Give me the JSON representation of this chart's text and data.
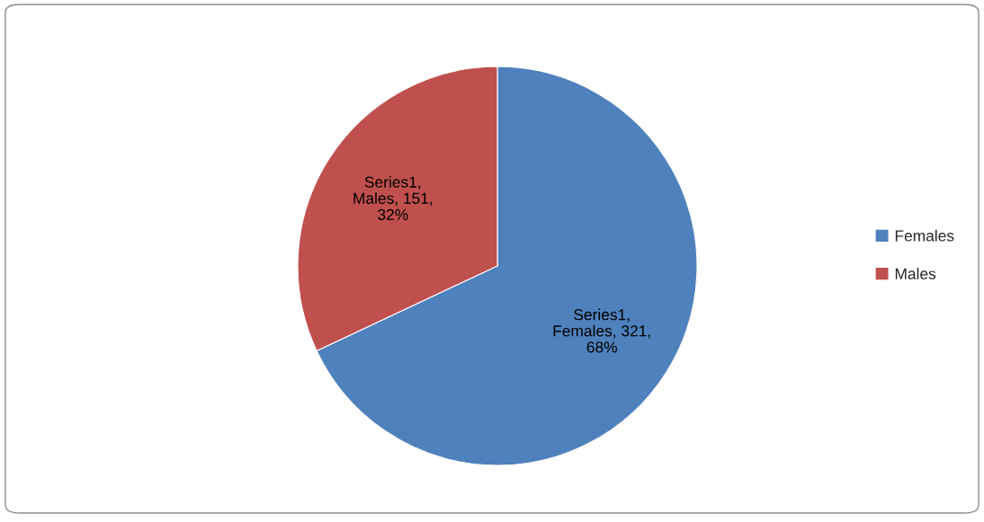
{
  "chart_data": {
    "type": "pie",
    "categories": [
      "Females",
      "Males"
    ],
    "values": [
      321,
      151
    ],
    "value_labels": [
      "Series1,\nFemales, 321,\n68%",
      "Series1,\nMales, 151,\n32%"
    ],
    "colors": [
      "#4f81bd",
      "#c0504d"
    ],
    "legend": "right"
  }
}
